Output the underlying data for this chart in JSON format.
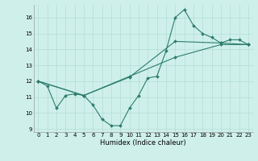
{
  "line1_x": [
    0,
    1,
    2,
    3,
    4,
    5,
    6,
    7,
    8,
    9,
    10,
    11,
    12,
    13,
    14,
    15,
    16,
    17,
    18,
    19,
    20,
    21,
    22,
    23
  ],
  "line1_y": [
    12.0,
    11.7,
    10.3,
    11.1,
    11.2,
    11.1,
    10.5,
    9.6,
    9.2,
    9.2,
    10.3,
    11.1,
    12.2,
    12.3,
    13.9,
    16.0,
    16.5,
    15.5,
    15.0,
    14.75,
    14.4,
    14.6,
    14.6,
    14.3
  ],
  "line2_x": [
    0,
    5,
    10,
    15,
    20,
    23
  ],
  "line2_y": [
    12.0,
    11.1,
    12.3,
    13.5,
    14.3,
    14.3
  ],
  "line3_x": [
    0,
    5,
    10,
    15,
    20,
    23
  ],
  "line3_y": [
    12.0,
    11.1,
    12.25,
    14.5,
    14.4,
    14.3
  ],
  "color": "#2d7d6e",
  "bg_color": "#cff0ea",
  "grid_color": "#b0ddd5",
  "xlabel": "Humidex (Indice chaleur)",
  "xlim": [
    -0.5,
    23.5
  ],
  "ylim": [
    8.8,
    16.8
  ],
  "yticks": [
    9,
    10,
    11,
    12,
    13,
    14,
    15,
    16
  ],
  "xticks": [
    0,
    1,
    2,
    3,
    4,
    5,
    6,
    7,
    8,
    9,
    10,
    11,
    12,
    13,
    14,
    15,
    16,
    17,
    18,
    19,
    20,
    21,
    22,
    23
  ],
  "tick_fontsize": 5.0,
  "xlabel_fontsize": 6.0
}
